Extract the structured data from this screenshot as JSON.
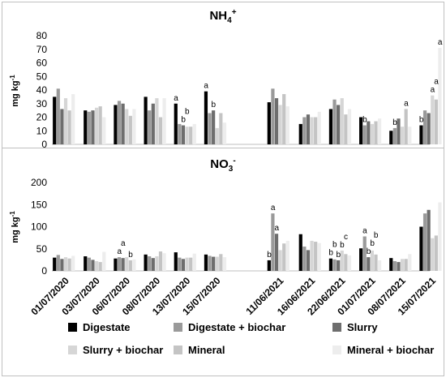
{
  "chart_data": [
    {
      "type": "bar",
      "title": "NH4+",
      "title_main": "NH",
      "title_sub": "4",
      "title_sup": "+",
      "ylabel": "mg kg-1",
      "ylabel_main": "mg kg",
      "ylabel_sup": "-1",
      "ylim": [
        0,
        80
      ],
      "yticks": [
        0,
        10,
        20,
        30,
        40,
        50,
        60,
        70,
        80
      ],
      "grid": false,
      "categories": [
        "01/07/2020",
        "03/07/2020",
        "06/07/2020",
        "08/07/2020",
        "13/07/2020",
        "15/07/2020",
        "11/06/2021",
        "16/06/2021",
        "22/06/2021",
        "01/07/2021",
        "08/07/2021",
        "15/07/2021"
      ],
      "series": [
        {
          "name": "Digestate",
          "color": "#000000",
          "values": [
            35,
            25,
            29,
            35,
            30,
            39,
            31,
            15,
            26,
            20,
            10,
            14
          ]
        },
        {
          "name": "Digestate + biochar",
          "color": "#9a9a9a",
          "values": [
            41,
            24,
            32,
            25,
            15,
            23,
            41,
            20,
            33,
            14,
            12,
            25
          ]
        },
        {
          "name": "Slurry",
          "color": "#6e6e6e",
          "values": [
            26,
            25,
            30,
            30,
            14,
            25,
            34,
            22,
            29,
            17,
            19,
            23
          ]
        },
        {
          "name": "Slurry + biochar",
          "color": "#d6d6d6",
          "values": [
            34,
            27,
            26,
            34,
            13,
            12,
            29,
            20,
            34,
            15,
            13,
            36
          ]
        },
        {
          "name": "Mineral",
          "color": "#c4c4c4",
          "values": [
            25,
            28,
            21,
            20,
            13,
            23,
            37,
            20,
            22,
            17,
            26,
            33
          ]
        },
        {
          "name": "Mineral + biochar",
          "color": "#ededed",
          "values": [
            37,
            20,
            26,
            34,
            15,
            16,
            28,
            24,
            26,
            19,
            13,
            71
          ]
        }
      ],
      "annotations": [
        {
          "category": 4,
          "series": 0,
          "text": "a"
        },
        {
          "category": 4,
          "series": 2,
          "text": "b"
        },
        {
          "category": 4,
          "series": 3,
          "text": "b"
        },
        {
          "category": 5,
          "series": 0,
          "text": "a"
        },
        {
          "category": 5,
          "series": 2,
          "text": "b"
        },
        {
          "category": 9,
          "series": 1,
          "text": "b"
        },
        {
          "category": 10,
          "series": 1,
          "text": "b"
        },
        {
          "category": 10,
          "series": 4,
          "text": "a"
        },
        {
          "category": 11,
          "series": 0,
          "text": "b"
        },
        {
          "category": 11,
          "series": 3,
          "text": "a"
        },
        {
          "category": 11,
          "series": 4,
          "text": "a"
        },
        {
          "category": 11,
          "series": 5,
          "text": "a"
        }
      ]
    },
    {
      "type": "bar",
      "title": "NO3-",
      "title_main": "NO",
      "title_sub": "3",
      "title_sup": "-",
      "ylabel": "mg kg-1",
      "ylabel_main": "mg kg",
      "ylabel_sup": "-1",
      "ylim": [
        0,
        200
      ],
      "yticks": [
        0,
        50,
        100,
        150,
        200
      ],
      "grid": false,
      "categories": [
        "01/07/2020",
        "03/07/2020",
        "06/07/2020",
        "08/07/2020",
        "13/07/2020",
        "15/07/2020",
        "11/06/2021",
        "16/06/2021",
        "22/06/2021",
        "01/07/2021",
        "08/07/2021",
        "15/07/2021"
      ],
      "series": [
        {
          "name": "Digestate",
          "color": "#000000",
          "values": [
            30,
            33,
            28,
            37,
            42,
            37,
            24,
            83,
            28,
            51,
            29,
            100
          ]
        },
        {
          "name": "Digestate + biochar",
          "color": "#9a9a9a",
          "values": [
            36,
            30,
            31,
            33,
            30,
            34,
            130,
            55,
            26,
            78,
            22,
            130
          ]
        },
        {
          "name": "Slurry",
          "color": "#6e6e6e",
          "values": [
            27,
            25,
            29,
            29,
            27,
            32,
            84,
            47,
            24,
            31,
            20,
            138
          ]
        },
        {
          "name": "Slurry + biochar",
          "color": "#d6d6d6",
          "values": [
            31,
            22,
            31,
            33,
            30,
            32,
            47,
            68,
            46,
            46,
            27,
            74
          ]
        },
        {
          "name": "Mineral",
          "color": "#c4c4c4",
          "values": [
            28,
            20,
            24,
            44,
            30,
            38,
            62,
            66,
            38,
            37,
            27,
            80
          ]
        },
        {
          "name": "Mineral + biochar",
          "color": "#ededed",
          "values": [
            34,
            43,
            26,
            40,
            39,
            31,
            68,
            63,
            35,
            24,
            38,
            155
          ]
        }
      ],
      "annotations": [
        {
          "category": 2,
          "series": 1,
          "text": "a"
        },
        {
          "category": 2,
          "series": 2,
          "text": "a"
        },
        {
          "category": 2,
          "series": 4,
          "text": "b"
        },
        {
          "category": 6,
          "series": 0,
          "text": "b"
        },
        {
          "category": 6,
          "series": 1,
          "text": "a"
        },
        {
          "category": 6,
          "series": 2,
          "text": "a"
        },
        {
          "category": 8,
          "series": 0,
          "text": "b"
        },
        {
          "category": 8,
          "series": 1,
          "text": "b"
        },
        {
          "category": 8,
          "series": 2,
          "text": "b"
        },
        {
          "category": 8,
          "series": 3,
          "text": "b"
        },
        {
          "category": 8,
          "series": 4,
          "text": "c"
        },
        {
          "category": 9,
          "series": 1,
          "text": "a"
        },
        {
          "category": 9,
          "series": 2,
          "text": "b"
        },
        {
          "category": 9,
          "series": 3,
          "text": "b"
        },
        {
          "category": 9,
          "series": 4,
          "text": "b"
        }
      ]
    }
  ],
  "legend": [
    {
      "label": "Digestate",
      "color": "#000000"
    },
    {
      "label": "Digestate + biochar",
      "color": "#9a9a9a"
    },
    {
      "label": "Slurry",
      "color": "#6e6e6e"
    },
    {
      "label": "Slurry + biochar",
      "color": "#d6d6d6"
    },
    {
      "label": "Mineral",
      "color": "#c4c4c4"
    },
    {
      "label": "Mineral + biochar",
      "color": "#ededed"
    }
  ]
}
